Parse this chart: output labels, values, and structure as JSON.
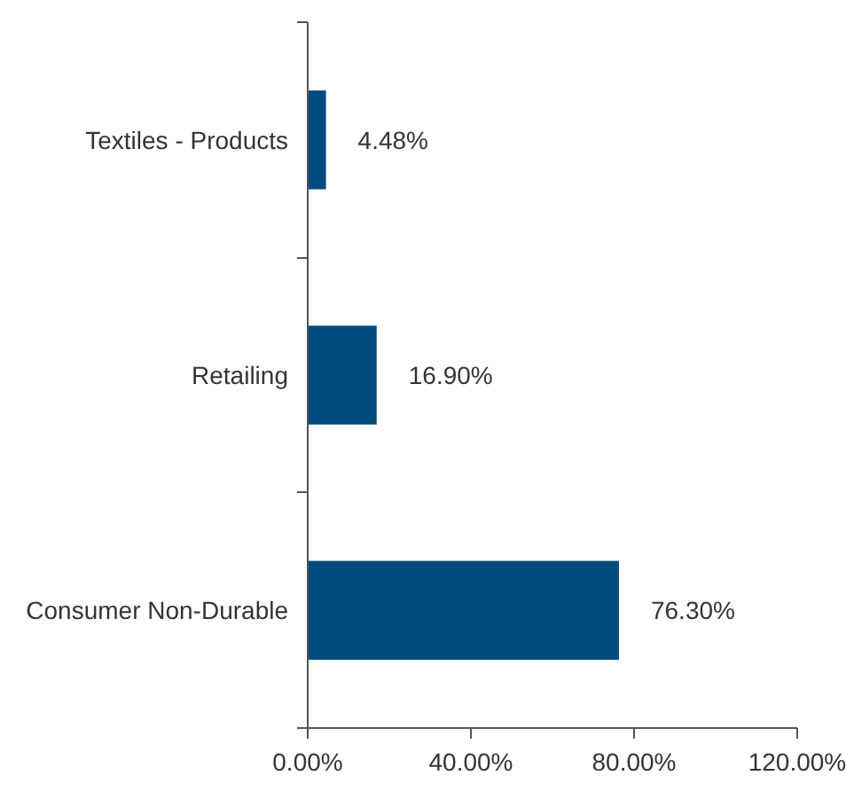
{
  "chart_data": {
    "type": "bar",
    "orientation": "horizontal",
    "categories": [
      "Textiles - Products",
      "Retailing",
      "Consumer Non-Durable"
    ],
    "values": [
      4.48,
      16.9,
      76.3
    ],
    "color": "#004b80",
    "value_labels": [
      "4.48%",
      "16.90%",
      "76.30%"
    ],
    "xlim": [
      0,
      120
    ],
    "xticks": [
      {
        "value": 0,
        "label": "0.00%"
      },
      {
        "value": 40,
        "label": "40.00%"
      },
      {
        "value": 80,
        "label": "80.00%"
      },
      {
        "value": 120,
        "label": "120.00%"
      }
    ],
    "grid": false
  }
}
